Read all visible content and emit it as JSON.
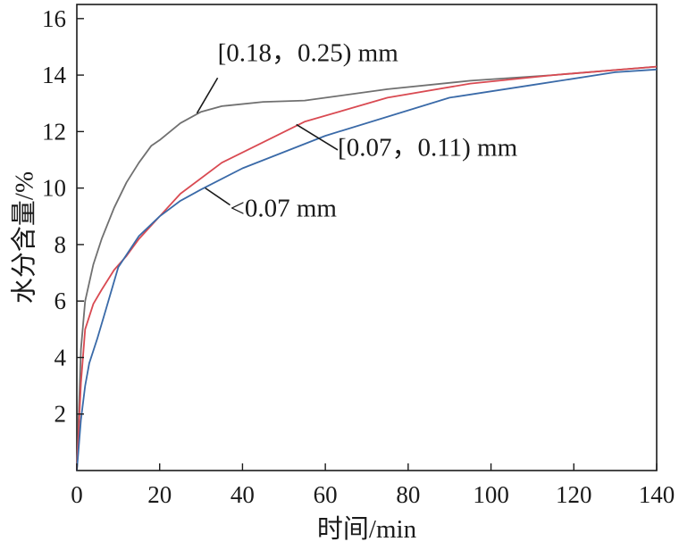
{
  "chart_data": {
    "type": "line",
    "xlabel": "时间/min",
    "ylabel": "水分含量/%",
    "xlim": [
      0,
      140
    ],
    "ylim": [
      0,
      16.5
    ],
    "xticks": [
      0,
      20,
      40,
      60,
      80,
      100,
      120,
      140
    ],
    "yticks": [
      2,
      4,
      6,
      8,
      10,
      12,
      14,
      16
    ],
    "grid": false,
    "legend": "none",
    "series": [
      {
        "name": "[0.18，0.25) mm",
        "color": "#707070",
        "x": [
          0,
          1,
          2,
          4,
          6,
          9,
          12,
          15,
          18,
          20,
          25,
          30,
          35,
          45,
          55,
          75,
          95,
          115,
          140
        ],
        "y": [
          0,
          4.3,
          6.0,
          7.3,
          8.2,
          9.3,
          10.2,
          10.9,
          11.5,
          11.7,
          12.3,
          12.7,
          12.9,
          13.05,
          13.1,
          13.5,
          13.8,
          14.0,
          14.3
        ]
      },
      {
        "name": "[0.07，0.11) mm",
        "color": "#d94a52",
        "x": [
          0,
          1,
          2,
          4,
          6,
          9,
          12,
          15,
          20,
          25,
          35,
          55,
          75,
          95,
          115,
          140
        ],
        "y": [
          0,
          3.1,
          5.0,
          5.9,
          6.4,
          7.1,
          7.6,
          8.2,
          9.0,
          9.8,
          10.9,
          12.35,
          13.2,
          13.7,
          14.0,
          14.3
        ]
      },
      {
        "name": "<0.07 mm",
        "color": "#3a6aa8",
        "x": [
          0,
          1,
          2,
          3,
          5,
          7,
          10,
          15,
          20,
          25,
          30,
          40,
          60,
          90,
          110,
          130,
          140
        ],
        "y": [
          0,
          1.8,
          3.0,
          3.8,
          4.7,
          5.7,
          7.2,
          8.3,
          9.0,
          9.55,
          9.95,
          10.7,
          11.85,
          13.2,
          13.65,
          14.1,
          14.2
        ]
      }
    ],
    "annotations": [
      {
        "text": "[0.18，0.25) mm",
        "line_from": [
          29,
          12.65
        ],
        "line_to": [
          34,
          13.9
        ],
        "text_at": [
          34,
          14.5
        ]
      },
      {
        "text": "[0.07，0.11) mm",
        "line_from": [
          53,
          12.25
        ],
        "line_to": [
          63,
          11.35
        ],
        "text_at": [
          63,
          11.15
        ]
      },
      {
        "text": "<0.07 mm",
        "line_from": [
          31,
          10.0
        ],
        "line_to": [
          37,
          9.4
        ],
        "text_at": [
          37,
          9.0
        ]
      }
    ]
  }
}
